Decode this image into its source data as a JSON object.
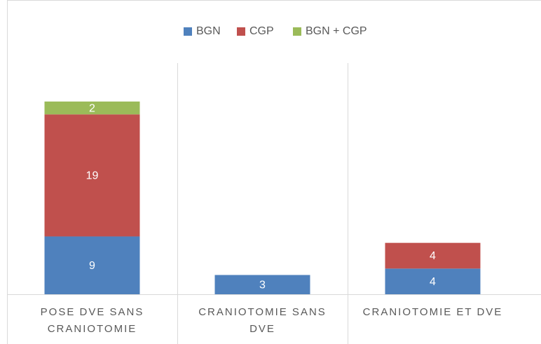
{
  "chart_data": {
    "type": "stacked_bar",
    "categories": [
      "POSE DVE SANS CRANIOTOMIE",
      "CRANIOTOMIE SANS DVE",
      "CRANIOTOMIE ET DVE"
    ],
    "series": [
      {
        "name": "BGN",
        "color": "#4f81bd",
        "values": [
          9,
          3,
          4
        ]
      },
      {
        "name": "CGP",
        "color": "#c0504d",
        "values": [
          19,
          null,
          4
        ]
      },
      {
        "name": "BGN + CGP",
        "color": "#9bbb59",
        "values": [
          2,
          null,
          null
        ]
      }
    ],
    "legend": "top"
  }
}
